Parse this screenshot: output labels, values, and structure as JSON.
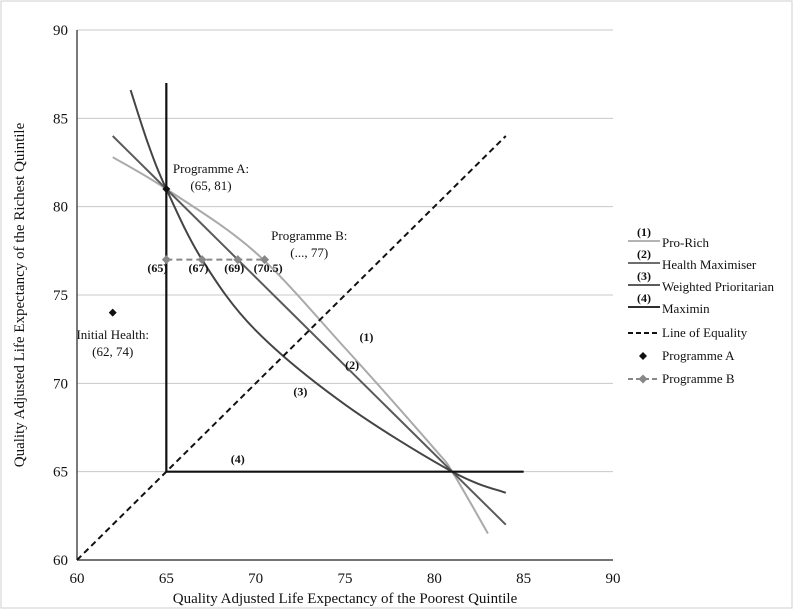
{
  "chart_data": {
    "type": "line",
    "xlabel": "Quality Adjusted Life Expectancy of the Poorest Quintile",
    "ylabel": "Quality Adjusted Life Expectancy of the Richest Quintile",
    "xlim": [
      60,
      90
    ],
    "ylim": [
      60,
      90
    ],
    "xticks": [
      "60",
      "65",
      "70",
      "75",
      "80",
      "85",
      "90"
    ],
    "yticks": [
      "60",
      "65",
      "70",
      "75",
      "80",
      "85",
      "90"
    ],
    "grid": "horizontal",
    "legend_position": "right",
    "series": [
      {
        "name": "Pro-Rich",
        "legend_number": "(1)",
        "color": "#aaaaaa",
        "style": "solid",
        "x": [
          62,
          65,
          70,
          75,
          80,
          81,
          83
        ],
        "y": [
          82.8,
          81,
          77.4,
          72.0,
          66.3,
          65,
          61.5
        ]
      },
      {
        "name": "Health Maximiser",
        "legend_number": "(2)",
        "color": "#5a5a5a",
        "style": "solid",
        "x": [
          62,
          65,
          70,
          75,
          81,
          84
        ],
        "y": [
          84,
          81,
          76,
          71,
          65,
          62
        ]
      },
      {
        "name": "Weighted Prioritarian",
        "legend_number": "(3)",
        "color": "#444444",
        "style": "solid",
        "x": [
          63,
          64,
          65,
          67,
          70,
          75,
          81,
          84
        ],
        "y": [
          86.6,
          83.5,
          81,
          77,
          73,
          68.8,
          65,
          63.8
        ]
      },
      {
        "name": "Maximin",
        "legend_number": "(4)",
        "color": "#111111",
        "style": "solid",
        "x": [
          65,
          65,
          85
        ],
        "y": [
          87,
          65,
          65
        ]
      },
      {
        "name": "Line of Equality",
        "color": "#111111",
        "style": "dashed",
        "x": [
          60,
          84
        ],
        "y": [
          60,
          84
        ]
      }
    ],
    "points": [
      {
        "name": "Programme A",
        "x": 65,
        "y": 81,
        "marker": "diamond",
        "color": "#111111"
      },
      {
        "name": "Initial Health",
        "x": 62,
        "y": 74,
        "marker": "diamond",
        "color": "#111111"
      }
    ],
    "programme_b": {
      "name": "Programme B",
      "color": "#888888",
      "style": "dashed",
      "marker": "diamond",
      "x": [
        65,
        67,
        69,
        70.5
      ],
      "y": [
        77,
        77,
        77,
        77
      ]
    },
    "legend_names": [
      "Pro-Rich",
      "Health Maximiser",
      "Weighted Prioritarian",
      "Maximin",
      "Line of Equality",
      "Programme A",
      "Programme B"
    ],
    "legend_numbers": [
      "(1)",
      "(2)",
      "(3)",
      "(4)"
    ],
    "curve_labels": [
      {
        "text": "(1)",
        "x": 76.2,
        "y": 72.4
      },
      {
        "text": "(2)",
        "x": 75.4,
        "y": 70.8
      },
      {
        "text": "(3)",
        "x": 72.5,
        "y": 69.3
      },
      {
        "text": "(4)",
        "x": 69.0,
        "y": 65.5
      }
    ],
    "point_labels": [
      {
        "text": "(65)",
        "x": 64.5,
        "y": 76.3
      },
      {
        "text": "(67)",
        "x": 66.8,
        "y": 76.3
      },
      {
        "text": "(69)",
        "x": 68.8,
        "y": 76.3
      },
      {
        "text": "(70.5)",
        "x": 70.7,
        "y": 76.3
      }
    ],
    "annotations": [
      {
        "lines": [
          "Programme A:",
          "(65, 81)"
        ],
        "x": 67.5,
        "y": 81.9
      },
      {
        "lines": [
          "Programme B:",
          "(..., 77)"
        ],
        "x": 73.0,
        "y": 78.1
      },
      {
        "lines": [
          "Initial Health:",
          "(62, 74)"
        ],
        "x": 62.0,
        "y": 72.5
      }
    ]
  }
}
